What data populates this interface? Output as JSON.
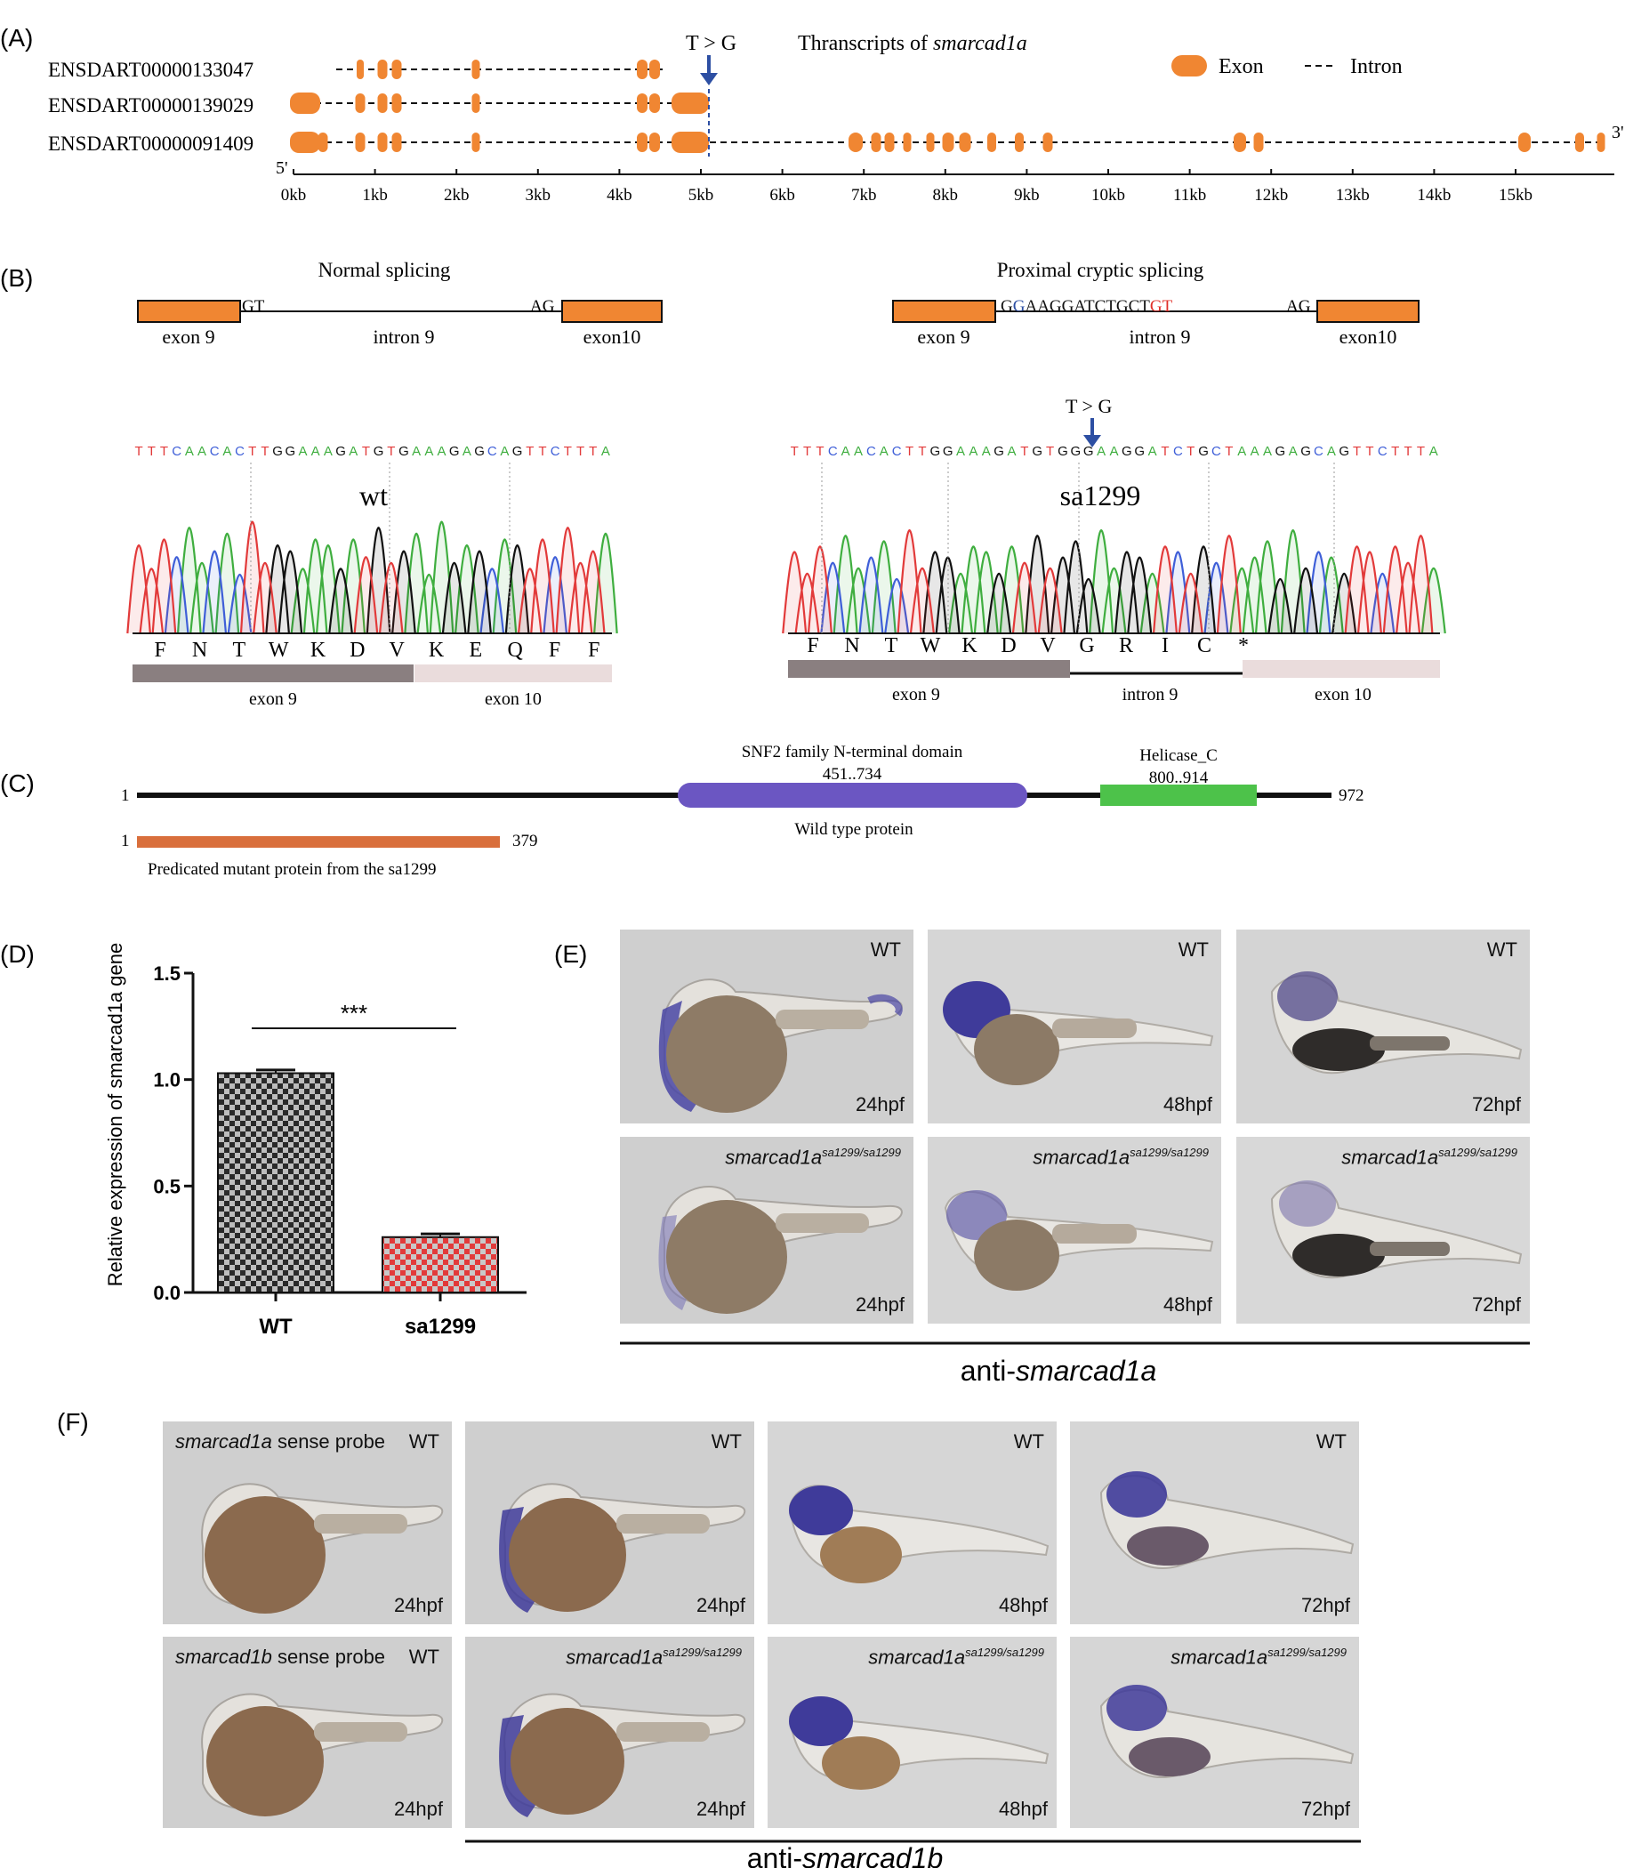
{
  "panelA": {
    "label": "(A)",
    "title_prefix": "Thranscripts of ",
    "title_gene": "smarcad1a",
    "mutation": "T > G",
    "legend": {
      "exon": "Exon",
      "intron": "Intron"
    },
    "transcripts": [
      "ENSDART00000133047",
      "ENSDART00000139029",
      "ENSDART00000091409"
    ],
    "end5": "5'",
    "end3": "3'",
    "ticks": [
      "0kb",
      "1kb",
      "2kb",
      "3kb",
      "4kb",
      "5kb",
      "6kb",
      "7kb",
      "8kb",
      "9kb",
      "10kb",
      "11kb",
      "12kb",
      "13kb",
      "14kb",
      "15kb"
    ],
    "colors": {
      "exon": "#f08632",
      "arrow": "#2d4fa3"
    }
  },
  "panelB": {
    "label": "(B)",
    "left": {
      "title": "Normal splicing",
      "donor": "GT",
      "acceptor": "AG",
      "exon_left": "exon 9",
      "intron": "intron 9",
      "exon_right": "exon10",
      "seq": "TTTCAACACTTGGAAAGATGTGAAAGAGCAGTTCTTTA",
      "sample": "wt",
      "aa": [
        "F",
        "N",
        "T",
        "W",
        "K",
        "D",
        "V",
        "K",
        "E",
        "Q",
        "F",
        "F"
      ],
      "bar_left": "exon 9",
      "bar_right": "exon 10"
    },
    "right": {
      "title": "Proximal cryptic splicing",
      "cryptic_seq_g1": "G",
      "cryptic_seq_g2": "G",
      "cryptic_seq_mid": "AAGGATCTGCT",
      "cryptic_seq_gt": "GT",
      "acceptor": "AG",
      "exon_left": "exon 9",
      "intron": "intron 9",
      "exon_right": "exon10",
      "mutation": "T > G",
      "seq": "TTTCAACACTTGGAAAGATGTGGGAAGGATCTGCTAAAGAGCAGTTCTTTA",
      "sample": "sa1299",
      "aa": [
        "F",
        "N",
        "T",
        "W",
        "K",
        "D",
        "V",
        "G",
        "R",
        "I",
        "C",
        "*"
      ],
      "bar_left": "exon 9",
      "bar_mid": "intron 9",
      "bar_right": "exon 10"
    }
  },
  "panelC": {
    "label": "(C)",
    "start": "1",
    "end": "972",
    "domain1_name": "SNF2 family N-terminal domain",
    "domain1_range": "451..734",
    "domain2_name": "Helicase_C",
    "domain2_range": "800..914",
    "wt_label": "Wild type protein",
    "mut_start": "1",
    "mut_end": "379",
    "mut_label": "Predicated mutant protein from the sa1299",
    "colors": {
      "domain1": "#6b56c2",
      "domain2": "#4dc24a",
      "mutant": "#d96f3c"
    }
  },
  "chart_data": {
    "type": "bar",
    "categories": [
      "WT",
      "sa1299"
    ],
    "values": [
      1.03,
      0.26
    ],
    "errors": [
      0.015,
      0.015
    ],
    "ylabel": "Relative expression of smarcad1a gene",
    "ylim": [
      0,
      1.5
    ],
    "yticks": [
      "0.0",
      "0.5",
      "1.0",
      "1.5"
    ],
    "significance": "***",
    "label": "(D)"
  },
  "panelE": {
    "label": "(E)",
    "wt": "WT",
    "geno_base": "smarcad1a",
    "geno_sup": "sa1299/sa1299",
    "stages": [
      "24hpf",
      "48hpf",
      "72hpf"
    ],
    "footer_prefix": "anti-",
    "footer_gene": "smarcad1a"
  },
  "panelF": {
    "label": "(F)",
    "wt": "WT",
    "sense_a_gene": "smarcad1a",
    "sense_a_text": " sense probe",
    "sense_b_gene": "smarcad1b",
    "sense_b_text": " sense probe",
    "geno_base": "smarcad1a",
    "geno_sup": "sa1299/sa1299",
    "stages": [
      "24hpf",
      "24hpf",
      "48hpf",
      "72hpf"
    ],
    "footer_prefix": "anti-",
    "footer_gene": "smarcad1b"
  }
}
